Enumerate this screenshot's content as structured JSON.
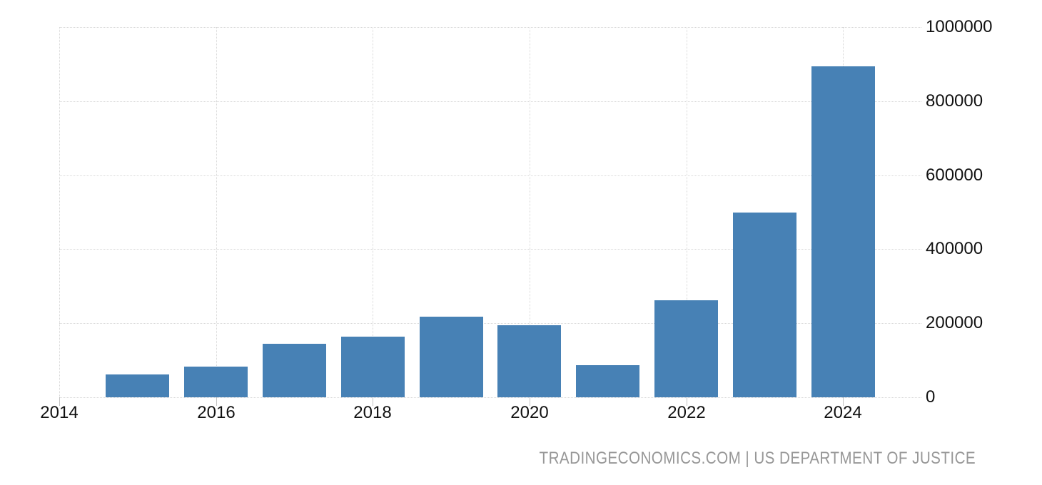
{
  "chart_data": {
    "type": "bar",
    "title": "",
    "xlabel": "",
    "ylabel": "",
    "x": [
      2015,
      2016,
      2017,
      2018,
      2019,
      2020,
      2021,
      2022,
      2023,
      2024
    ],
    "values": [
      61000,
      82000,
      144000,
      163000,
      217000,
      194000,
      86000,
      262000,
      499000,
      894000
    ],
    "ylim": [
      0,
      1000000
    ],
    "x_range": [
      2014,
      2025
    ],
    "y_ticks": [
      0,
      200000,
      400000,
      600000,
      800000,
      1000000
    ],
    "y_tick_labels": [
      "0",
      "200000",
      "400000",
      "600000",
      "800000",
      "1000000"
    ],
    "x_ticks": [
      2014,
      2016,
      2018,
      2020,
      2022,
      2024
    ],
    "x_tick_labels": [
      "2014",
      "2016",
      "2018",
      "2020",
      "2022",
      "2024"
    ],
    "grid": "dotted, horizontal and vertical at labeled ticks",
    "legend": "none",
    "y_axis_side": "right"
  },
  "colors": {
    "bar": "#4781b5",
    "gridline": "#d7d7d7",
    "tick": "#c4c4c4",
    "axis_label": "#111111",
    "attribution": "#979797",
    "background": "#ffffff"
  },
  "attribution": {
    "text": "TRADINGECONOMICS.COM | US DEPARTMENT OF JUSTICE"
  }
}
